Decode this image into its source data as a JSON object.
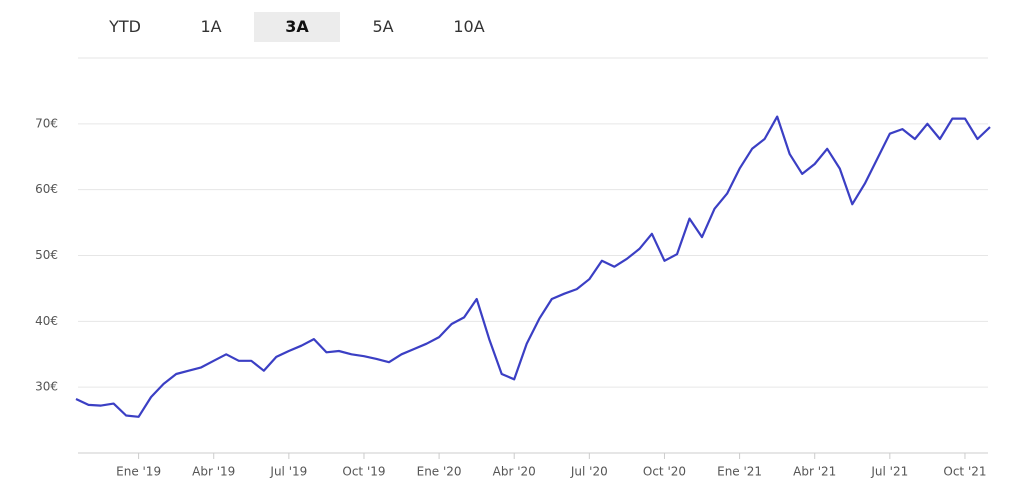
{
  "tabs": [
    {
      "label": "YTD",
      "active": false
    },
    {
      "label": "1A",
      "active": false
    },
    {
      "label": "3A",
      "active": true
    },
    {
      "label": "5A",
      "active": false
    },
    {
      "label": "10A",
      "active": false
    }
  ],
  "chart_data": {
    "type": "line",
    "color": "#3b3fc4",
    "grid": true,
    "ylim": [
      20,
      80
    ],
    "yticks": [
      {
        "value": 30,
        "label": "30€"
      },
      {
        "value": 40,
        "label": "40€"
      },
      {
        "value": 50,
        "label": "50€"
      },
      {
        "value": 60,
        "label": "60€"
      },
      {
        "value": 70,
        "label": "70€"
      }
    ],
    "categories": [
      null,
      null,
      null,
      null,
      null,
      "Ene '19",
      null,
      null,
      null,
      null,
      null,
      "Abr '19",
      null,
      null,
      null,
      null,
      null,
      "Jul '19",
      null,
      null,
      null,
      null,
      null,
      "Oct '19",
      null,
      null,
      null,
      null,
      null,
      "Ene '20",
      null,
      null,
      null,
      null,
      null,
      "Abr '20",
      null,
      null,
      null,
      null,
      null,
      "Jul '20",
      null,
      null,
      null,
      null,
      null,
      "Oct '20",
      null,
      null,
      null,
      null,
      null,
      "Ene '21",
      null,
      null,
      null,
      null,
      null,
      "Abr '21",
      null,
      null,
      null,
      null,
      null,
      "Jul '21",
      null,
      null,
      null,
      null,
      null,
      "Oct '21",
      null,
      null
    ],
    "values": [
      28.2,
      27.3,
      27.2,
      27.5,
      25.7,
      25.5,
      28.5,
      30.5,
      32,
      32.5,
      33,
      34,
      35,
      34,
      34,
      32.5,
      34.6,
      35.5,
      36.3,
      37.3,
      35.3,
      35.5,
      35,
      34.7,
      34.3,
      33.8,
      35,
      35.8,
      36.6,
      37.6,
      39.6,
      40.6,
      43.4,
      37.3,
      32,
      31.2,
      36.6,
      40.4,
      43.4,
      44.2,
      44.9,
      46.4,
      49.2,
      48.3,
      49.5,
      51,
      53.3,
      49.2,
      50.2,
      55.6,
      52.8,
      57.1,
      59.4,
      63.2,
      66.2,
      67.7,
      71.1,
      65.4,
      62.4,
      63.9,
      66.2,
      63.2,
      57.8,
      60.9,
      64.7,
      68.5,
      69.2,
      67.7,
      70,
      67.7,
      70.8,
      70.8,
      67.7,
      69.5
    ]
  }
}
